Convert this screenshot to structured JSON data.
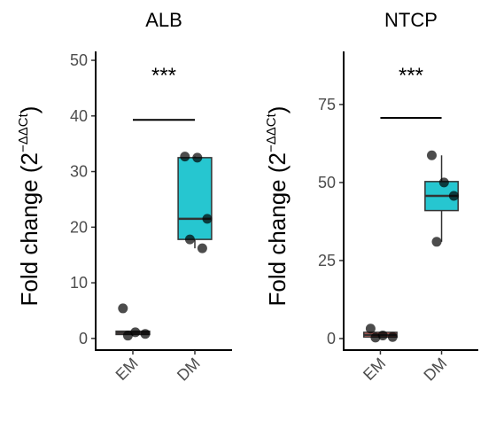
{
  "chart_data": [
    {
      "type": "box",
      "title": "ALB",
      "ylabel": "Fold change (2",
      "ylabel_sup": "−ΔΔCt",
      "ylabel_end": ")",
      "categories": [
        "EM",
        "DM"
      ],
      "colors": [
        "#f8766d",
        "#26c6d0"
      ],
      "boxes": [
        {
          "min": 0.5,
          "q1": 0.7,
          "median": 1.0,
          "q3": 1.3,
          "max": 1.3,
          "points": [
            5.4,
            1.1,
            0.8,
            0.5
          ]
        },
        {
          "min": 16.2,
          "q1": 17.8,
          "median": 21.5,
          "q3": 32.5,
          "max": 32.7,
          "points": [
            32.7,
            32.5,
            21.5,
            17.8,
            16.2
          ]
        }
      ],
      "ylim": [
        -2.1,
        51.6
      ],
      "yticks": [
        0,
        10,
        20,
        30,
        40,
        50
      ],
      "significance": {
        "label": "***",
        "y": 39.3
      }
    },
    {
      "type": "box",
      "title": "NTCP",
      "ylabel": "Fold change (2",
      "ylabel_sup": "−ΔΔCt",
      "ylabel_end": ")",
      "categories": [
        "EM",
        "DM"
      ],
      "colors": [
        "#f8766d",
        "#26c6d0"
      ],
      "boxes": [
        {
          "min": 0.3,
          "q1": 0.5,
          "median": 1.2,
          "q3": 2.0,
          "max": 2.0,
          "points": [
            3.2,
            1.0,
            0.5,
            0.3
          ]
        },
        {
          "min": 31,
          "q1": 41,
          "median": 45.7,
          "q3": 50.3,
          "max": 58.7,
          "points": [
            58.7,
            50,
            45.7,
            31
          ]
        }
      ],
      "ylim": [
        -3.7,
        92
      ],
      "yticks": [
        0,
        25,
        50,
        75
      ],
      "significance": {
        "label": "***",
        "y": 70.7
      }
    }
  ]
}
